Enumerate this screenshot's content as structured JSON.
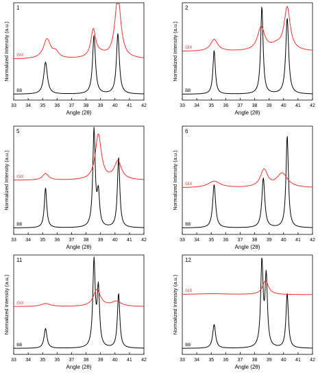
{
  "figure": {
    "background": "#ffffff",
    "axis_color": "#000000"
  },
  "chart_data": [
    {
      "type": "line",
      "panel_label": "1",
      "xlabel": "Angle (2θ)",
      "ylabel": "Normalized Intensity (a.u.)",
      "xlim": [
        33,
        42
      ],
      "xticks": [
        33,
        34,
        35,
        36,
        37,
        38,
        39,
        40,
        41,
        42
      ],
      "ylim": [
        0,
        100
      ],
      "grid": false,
      "series": [
        {
          "name": "BB",
          "color": "#000000",
          "baseline": 6,
          "peaks": [
            [
              35.2,
              0.15,
              33
            ],
            [
              38.55,
              0.12,
              60
            ],
            [
              40.2,
              0.12,
              62
            ]
          ]
        },
        {
          "name": "GIX",
          "color": "#ff2a2a",
          "baseline": 42,
          "peaks": [
            [
              35.3,
              0.3,
              20
            ],
            [
              38.5,
              0.2,
              28
            ],
            [
              40.2,
              0.25,
              64
            ],
            [
              35.9,
              0.25,
              6
            ],
            [
              39.0,
              0.5,
              4
            ]
          ]
        }
      ]
    },
    {
      "type": "line",
      "panel_label": "2",
      "xlabel": "Angle (2θ)",
      "ylabel": "Normalized Intensity (a.u.)",
      "xlim": [
        33,
        42
      ],
      "xticks": [
        33,
        34,
        35,
        36,
        37,
        38,
        39,
        40,
        41,
        42
      ],
      "ylim": [
        0,
        100
      ],
      "grid": false,
      "series": [
        {
          "name": "BB",
          "color": "#000000",
          "baseline": 6,
          "peaks": [
            [
              35.2,
              0.1,
              45
            ],
            [
              38.5,
              0.1,
              90
            ],
            [
              40.25,
              0.12,
              78
            ]
          ]
        },
        {
          "name": "GIX",
          "color": "#ff2a2a",
          "baseline": 50,
          "peaks": [
            [
              35.2,
              0.3,
              12
            ],
            [
              38.45,
              0.3,
              24
            ],
            [
              40.25,
              0.25,
              44
            ],
            [
              39.5,
              0.5,
              5
            ]
          ]
        }
      ]
    },
    {
      "type": "line",
      "panel_label": "5",
      "xlabel": "Angle (2θ)",
      "ylabel": "Normalized Intensity (a.u.)",
      "xlim": [
        33,
        42
      ],
      "xticks": [
        33,
        34,
        35,
        36,
        37,
        38,
        39,
        40,
        41,
        42
      ],
      "ylim": [
        0,
        100
      ],
      "grid": false,
      "series": [
        {
          "name": "BB",
          "color": "#000000",
          "baseline": 6,
          "peaks": [
            [
              35.2,
              0.1,
              37
            ],
            [
              38.55,
              0.1,
              90
            ],
            [
              38.85,
              0.1,
              30
            ],
            [
              40.25,
              0.1,
              65
            ]
          ]
        },
        {
          "name": "GIX",
          "color": "#ff2a2a",
          "baseline": 50,
          "peaks": [
            [
              35.2,
              0.25,
              6
            ],
            [
              38.85,
              0.25,
              42
            ],
            [
              40.2,
              0.3,
              17
            ]
          ]
        }
      ]
    },
    {
      "type": "line",
      "panel_label": "6",
      "xlabel": "Angle (2θ)",
      "ylabel": "Normalized Intensity (a.u.)",
      "xlim": [
        33,
        42
      ],
      "xticks": [
        33,
        34,
        35,
        36,
        37,
        38,
        39,
        40,
        41,
        42
      ],
      "ylim": [
        0,
        100
      ],
      "grid": false,
      "series": [
        {
          "name": "BB",
          "color": "#000000",
          "baseline": 6,
          "peaks": [
            [
              35.2,
              0.12,
              40
            ],
            [
              38.6,
              0.12,
              46
            ],
            [
              40.25,
              0.1,
              85
            ]
          ]
        },
        {
          "name": "GIX",
          "color": "#ff2a2a",
          "baseline": 43,
          "peaks": [
            [
              35.2,
              0.5,
              6
            ],
            [
              38.65,
              0.3,
              16
            ],
            [
              39.9,
              0.45,
              13
            ]
          ]
        }
      ]
    },
    {
      "type": "line",
      "panel_label": "11",
      "xlabel": "Angle (2θ)",
      "ylabel": "Normalized Intensity (a.u.)",
      "xlim": [
        33,
        42
      ],
      "xticks": [
        33,
        34,
        35,
        36,
        37,
        38,
        39,
        40,
        41,
        42
      ],
      "ylim": [
        0,
        100
      ],
      "grid": false,
      "series": [
        {
          "name": "BB",
          "color": "#000000",
          "baseline": 6,
          "peaks": [
            [
              35.2,
              0.12,
              20
            ],
            [
              38.55,
              0.1,
              86
            ],
            [
              38.85,
              0.1,
              58
            ],
            [
              40.25,
              0.1,
              55
            ]
          ]
        },
        {
          "name": "GIX",
          "color": "#ff2a2a",
          "baseline": 48,
          "peaks": [
            [
              35.2,
              0.4,
              3
            ],
            [
              38.75,
              0.3,
              17
            ],
            [
              40.1,
              0.4,
              5
            ]
          ]
        }
      ]
    },
    {
      "type": "line",
      "panel_label": "12",
      "xlabel": "Angle (2θ)",
      "ylabel": "Normalized Intensity (a.u.)",
      "xlim": [
        33,
        42
      ],
      "xticks": [
        33,
        34,
        35,
        36,
        37,
        38,
        39,
        40,
        41,
        42
      ],
      "ylim": [
        0,
        100
      ],
      "grid": false,
      "series": [
        {
          "name": "BB",
          "color": "#000000",
          "baseline": 6,
          "peaks": [
            [
              35.2,
              0.12,
              24
            ],
            [
              38.5,
              0.1,
              85
            ],
            [
              38.8,
              0.1,
              70
            ],
            [
              40.25,
              0.1,
              55
            ]
          ]
        },
        {
          "name": "GIX",
          "color": "#ff2a2a",
          "baseline": 60,
          "peaks": [
            [
              38.75,
              0.25,
              14
            ],
            [
              35.0,
              1.5,
              1
            ]
          ]
        }
      ]
    }
  ]
}
